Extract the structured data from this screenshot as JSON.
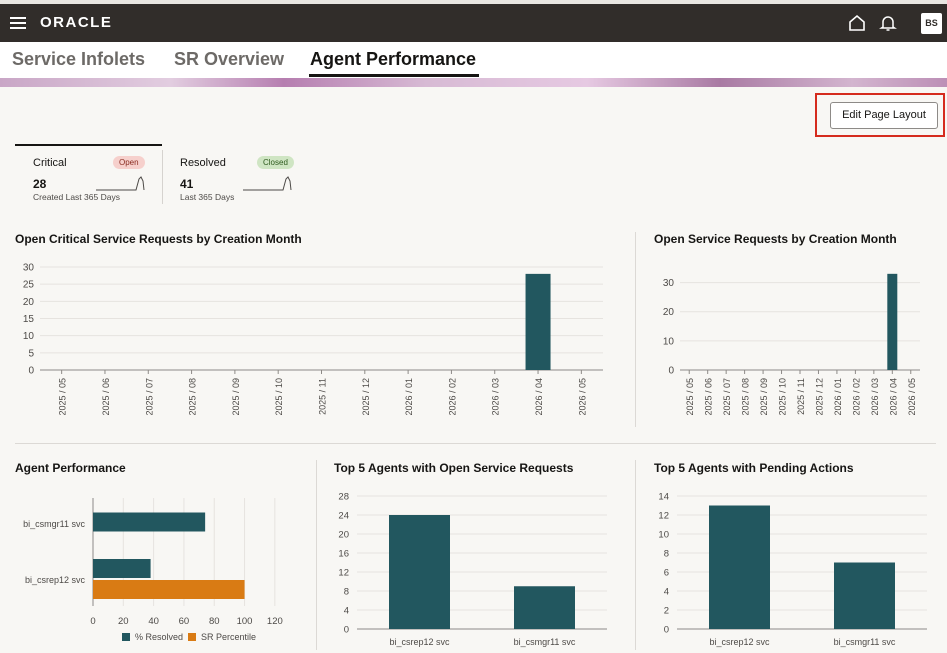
{
  "header": {
    "logo": "ORACLE",
    "avatar_initials": "BS",
    "icons": [
      "menu-icon",
      "home-icon",
      "bell-icon"
    ]
  },
  "tabs": [
    {
      "label": "Service Infolets",
      "active": false
    },
    {
      "label": "SR Overview",
      "active": false
    },
    {
      "label": "Agent Performance",
      "active": true
    }
  ],
  "toolbar": {
    "edit_label": "Edit Page Layout"
  },
  "infolets": [
    {
      "title": "Critical",
      "badge": "Open",
      "badge_color": "#f6d0cc",
      "count": "28",
      "subtitle": "Created Last 365 Days"
    },
    {
      "title": "Resolved",
      "badge": "Closed",
      "badge_color": "#cfe5c3",
      "count": "41",
      "subtitle": "Last 365 Days"
    }
  ],
  "colors": {
    "teal": "#22575f",
    "orange": "#d97b14"
  },
  "chart_data": [
    {
      "id": "open-critical",
      "type": "bar",
      "title": "Open Critical Service Requests by Creation Month",
      "categories": [
        "2025 / 05",
        "2025 / 06",
        "2025 / 07",
        "2025 / 08",
        "2025 / 09",
        "2025 / 10",
        "2025 / 11",
        "2025 / 12",
        "2026 / 01",
        "2026 / 02",
        "2026 / 03",
        "2026 / 04",
        "2026 / 05"
      ],
      "values": [
        0,
        0,
        0,
        0,
        0,
        0,
        0,
        0,
        0,
        0,
        0,
        28,
        0
      ],
      "ylim": [
        0,
        30
      ],
      "yticks": [
        0,
        5,
        10,
        15,
        20,
        25,
        30
      ]
    },
    {
      "id": "open-sr",
      "type": "bar",
      "title": "Open Service Requests by Creation Month",
      "categories": [
        "2025 / 05",
        "2025 / 06",
        "2025 / 07",
        "2025 / 08",
        "2025 / 09",
        "2025 / 10",
        "2025 / 11",
        "2025 / 12",
        "2026 / 01",
        "2026 / 02",
        "2026 / 03",
        "2026 / 04",
        "2026 / 05"
      ],
      "values": [
        0,
        0,
        0,
        0,
        0,
        0,
        0,
        0,
        0,
        0,
        0,
        33,
        0
      ],
      "ylim": [
        0,
        35
      ],
      "yticks": [
        0,
        10,
        20,
        30
      ]
    },
    {
      "id": "agent-performance",
      "type": "bar",
      "orientation": "horizontal",
      "title": "Agent Performance",
      "categories": [
        "bi_csmgr11 svc",
        "bi_csrep12 svc"
      ],
      "series": [
        {
          "name": "% Resolved",
          "values": [
            74,
            38
          ]
        },
        {
          "name": "SR Percentile",
          "values": [
            null,
            100
          ]
        }
      ],
      "xlim": [
        0,
        130
      ],
      "xticks": [
        0,
        20,
        40,
        60,
        80,
        100,
        120
      ],
      "legend": "bottom"
    },
    {
      "id": "top5-open",
      "type": "bar",
      "title": "Top 5 Agents with Open Service Requests",
      "categories": [
        "bi_csrep12 svc",
        "bi_csmgr11 svc"
      ],
      "values": [
        24,
        9
      ],
      "ylim": [
        0,
        28
      ],
      "yticks": [
        0,
        4,
        8,
        12,
        16,
        20,
        24,
        28
      ]
    },
    {
      "id": "top5-pending",
      "type": "bar",
      "title": "Top 5 Agents with Pending Actions",
      "categories": [
        "bi_csrep12 svc",
        "bi_csmgr11 svc"
      ],
      "values": [
        13,
        7
      ],
      "ylim": [
        0,
        14
      ],
      "yticks": [
        0,
        2,
        4,
        6,
        8,
        10,
        12,
        14
      ]
    }
  ]
}
